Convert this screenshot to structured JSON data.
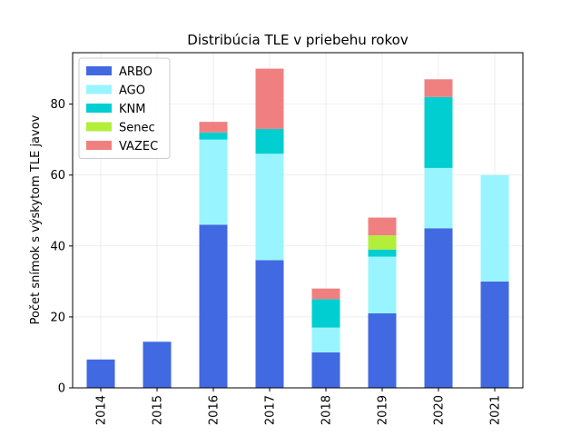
{
  "chart_data": {
    "type": "bar",
    "stacked": true,
    "title": "Distribúcia TLE v priebehu rokov",
    "ylabel": "Počet snímok s výskytom TLE javov",
    "categories": [
      "2014",
      "2015",
      "2016",
      "2017",
      "2018",
      "2019",
      "2020",
      "2021"
    ],
    "series": [
      {
        "name": "ARBO",
        "color": "#4169e1",
        "values": [
          8,
          13,
          46,
          36,
          10,
          21,
          45,
          30
        ]
      },
      {
        "name": "AGO",
        "color": "#98f5ff",
        "values": [
          0,
          0,
          24,
          30,
          7,
          16,
          17,
          30
        ]
      },
      {
        "name": "KNM",
        "color": "#00ced1",
        "values": [
          0,
          0,
          2,
          7,
          8,
          2,
          20,
          0
        ]
      },
      {
        "name": "Senec",
        "color": "#b3ee3a",
        "values": [
          0,
          0,
          0,
          0,
          0,
          4,
          0,
          0
        ]
      },
      {
        "name": "VAZEC",
        "color": "#f08080",
        "values": [
          0,
          0,
          3,
          17,
          3,
          5,
          5,
          0
        ]
      }
    ],
    "ylim": [
      0,
      94.5
    ],
    "yticks": [
      0,
      20,
      40,
      60,
      80
    ],
    "grid": true,
    "legend_position": "upper-left"
  }
}
